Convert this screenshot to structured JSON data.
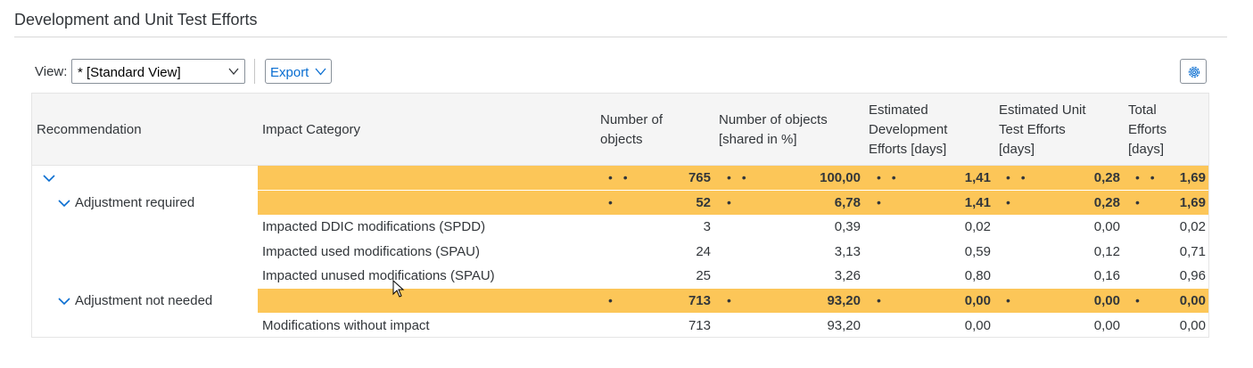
{
  "section": {
    "title": "Development and Unit Test Efforts"
  },
  "toolbar": {
    "view_label": "View:",
    "view_value": "* [Standard View]",
    "export_label": "Export"
  },
  "columns": [
    "Recommendation",
    "Impact Category",
    "Number of objects",
    "Number of objects [shared in %]",
    "Estimated Development Efforts [days]",
    "Estimated Unit Test Efforts [days]",
    "Total Efforts [days]"
  ],
  "column_lines": [
    [
      "Recommendation"
    ],
    [
      "Impact Category"
    ],
    [
      "Number of",
      "objects"
    ],
    [
      "Number of objects",
      "[shared in %]"
    ],
    [
      "Estimated",
      "Development",
      "Efforts [days]"
    ],
    [
      "Estimated Unit",
      "Test Efforts",
      "[days]"
    ],
    [
      "Total",
      "Efforts",
      "[days]"
    ]
  ],
  "rows": [
    {
      "level": 0,
      "recommendation": "",
      "category": "",
      "objects": "765",
      "shared": "100,00",
      "dev": "1,41",
      "unit": "0,28",
      "total": "1,69",
      "dots": "• •",
      "aggregate": true
    },
    {
      "level": 1,
      "recommendation": "Adjustment required",
      "category": "",
      "objects": "52",
      "shared": "6,78",
      "dev": "1,41",
      "unit": "0,28",
      "total": "1,69",
      "dots": "•",
      "aggregate": true
    },
    {
      "level": 2,
      "recommendation": "",
      "category": "Impacted DDIC modifications (SPDD)",
      "objects": "3",
      "shared": "0,39",
      "dev": "0,02",
      "unit": "0,00",
      "total": "0,02",
      "aggregate": false
    },
    {
      "level": 2,
      "recommendation": "",
      "category": "Impacted used modifications (SPAU)",
      "objects": "24",
      "shared": "3,13",
      "dev": "0,59",
      "unit": "0,12",
      "total": "0,71",
      "aggregate": false
    },
    {
      "level": 2,
      "recommendation": "",
      "category": "Impacted unused modifications (SPAU)",
      "objects": "25",
      "shared": "3,26",
      "dev": "0,80",
      "unit": "0,16",
      "total": "0,96",
      "aggregate": false
    },
    {
      "level": 1,
      "recommendation": "Adjustment not needed",
      "category": "",
      "objects": "713",
      "shared": "93,20",
      "dev": "0,00",
      "unit": "0,00",
      "total": "0,00",
      "dots": "•",
      "aggregate": true
    },
    {
      "level": 2,
      "recommendation": "",
      "category": "Modifications without impact",
      "objects": "713",
      "shared": "93,20",
      "dev": "0,00",
      "unit": "0,00",
      "total": "0,00",
      "aggregate": false
    }
  ],
  "colors": {
    "highlight": "#fcc658",
    "header_bg": "#f5f5f5",
    "accent": "#0a6ed1"
  },
  "icons": {
    "view_dropdown": "chevron-down-icon",
    "export_dropdown": "chevron-down-icon",
    "settings": "gear-icon",
    "expand": "chevron-down-icon"
  }
}
